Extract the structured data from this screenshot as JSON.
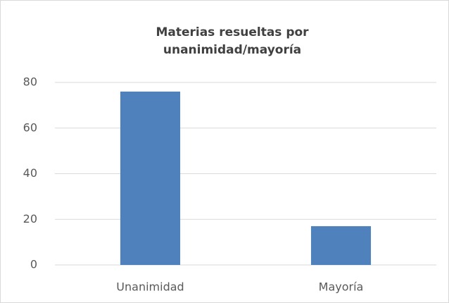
{
  "chart_data": {
    "type": "bar",
    "title": "Materias resueltas por unanimidad/mayoría",
    "categories": [
      "Unanimidad",
      "Mayoría"
    ],
    "values": [
      76,
      17
    ],
    "color": "#4f81bd",
    "ylim": [
      0,
      80
    ],
    "yticks": [
      0,
      20,
      40,
      60,
      80
    ],
    "grid": true
  }
}
